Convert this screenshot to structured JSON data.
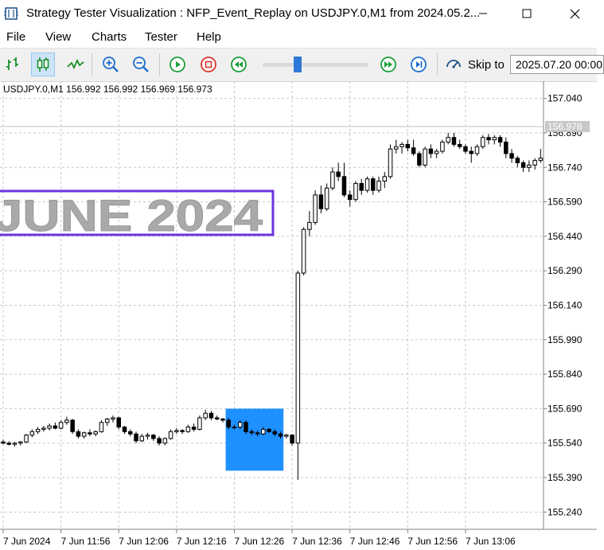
{
  "window": {
    "title": "Strategy Tester Visualization : NFP_Event_Replay on USDJPY.0,M1 from 2024.05.2...",
    "minimize_icon": "minimize-icon",
    "maximize_icon": "maximize-icon",
    "close_icon": "close-icon"
  },
  "menu": {
    "items": [
      "File",
      "View",
      "Charts",
      "Tester",
      "Help"
    ]
  },
  "toolbar": {
    "icons": [
      "bar-chart-icon",
      "candlestick-icon",
      "line-chart-icon",
      "zoom-in-icon",
      "zoom-out-icon",
      "play-icon",
      "stop-icon",
      "rewind-icon",
      "fast-forward-icon",
      "skip-to-end-icon",
      "skip-to-icon"
    ],
    "active": "candlestick-icon",
    "speed_slider_level": 0.35,
    "skip_label": "Skip to",
    "skip_date": "2025.07.20 00:00"
  },
  "chart": {
    "symbol_info": "USDJPY.0,M1  156.992 156.992 156.969 156.973",
    "price_levels": [
      "157.040",
      "156.890",
      "156.740",
      "156.590",
      "156.440",
      "156.290",
      "156.140",
      "155.990",
      "155.840",
      "155.690",
      "155.540",
      "155.390",
      "155.240"
    ],
    "current_price": "156.978",
    "time_labels": [
      "7 Jun 2024",
      "7 Jun 11:56",
      "7 Jun 12:06",
      "7 Jun 12:16",
      "7 Jun 12:26",
      "7 Jun 12:36",
      "7 Jun 12:46",
      "7 Jun 12:56",
      "7 Jun 13:06"
    ],
    "event_label": "JUNE 2024",
    "colors": {
      "grid": "#c8c8c8",
      "candle": "#000000",
      "event_box": "#1e90ff",
      "label_border": "#6a35e0",
      "label_text": "#a9a9a9"
    }
  },
  "chart_data": {
    "type": "candlestick",
    "symbol": "USDJPY.0,M1",
    "ylim": [
      155.165,
      157.115
    ],
    "candles": [
      [
        155.545,
        155.555,
        155.535,
        155.54
      ],
      [
        155.54,
        155.548,
        155.53,
        155.535
      ],
      [
        155.535,
        155.545,
        155.525,
        155.54
      ],
      [
        155.54,
        155.55,
        155.53,
        155.545
      ],
      [
        155.545,
        155.58,
        155.54,
        155.575
      ],
      [
        155.575,
        155.6,
        155.565,
        155.59
      ],
      [
        155.59,
        155.61,
        155.58,
        155.6
      ],
      [
        155.6,
        155.615,
        155.59,
        155.605
      ],
      [
        155.605,
        155.625,
        155.595,
        155.615
      ],
      [
        155.615,
        155.63,
        155.6,
        155.605
      ],
      [
        155.605,
        155.64,
        155.6,
        155.63
      ],
      [
        155.63,
        155.655,
        155.62,
        155.64
      ],
      [
        155.64,
        155.645,
        155.58,
        155.59
      ],
      [
        155.59,
        155.6,
        155.56,
        155.57
      ],
      [
        155.57,
        155.59,
        155.56,
        155.585
      ],
      [
        155.585,
        155.6,
        155.57,
        155.58
      ],
      [
        155.58,
        155.595,
        155.57,
        155.59
      ],
      [
        155.59,
        155.64,
        155.585,
        155.63
      ],
      [
        155.63,
        155.65,
        155.615,
        155.645
      ],
      [
        155.645,
        155.66,
        155.63,
        155.65
      ],
      [
        155.65,
        155.655,
        155.6,
        155.61
      ],
      [
        155.61,
        155.615,
        155.58,
        155.59
      ],
      [
        155.59,
        155.6,
        155.57,
        155.58
      ],
      [
        155.58,
        155.59,
        155.54,
        155.55
      ],
      [
        155.55,
        155.58,
        155.545,
        155.57
      ],
      [
        155.57,
        155.585,
        155.555,
        155.575
      ],
      [
        155.575,
        155.58,
        155.55,
        155.56
      ],
      [
        155.56,
        155.57,
        155.53,
        155.54
      ],
      [
        155.54,
        155.565,
        155.53,
        155.56
      ],
      [
        155.56,
        155.6,
        155.555,
        155.59
      ],
      [
        155.59,
        155.605,
        155.58,
        155.595
      ],
      [
        155.595,
        155.6,
        155.58,
        155.59
      ],
      [
        155.59,
        155.62,
        155.585,
        155.61
      ],
      [
        155.61,
        155.625,
        155.59,
        155.6
      ],
      [
        155.6,
        155.66,
        155.595,
        155.65
      ],
      [
        155.65,
        155.685,
        155.64,
        155.67
      ],
      [
        155.67,
        155.68,
        155.64,
        155.65
      ],
      [
        155.65,
        155.66,
        155.64,
        155.645
      ],
      [
        155.645,
        155.65,
        155.63,
        155.64
      ],
      [
        155.64,
        155.65,
        155.6,
        155.61
      ],
      [
        155.61,
        155.62,
        155.6,
        155.61
      ],
      [
        155.61,
        155.64,
        155.6,
        155.63
      ],
      [
        155.63,
        155.64,
        155.58,
        155.59
      ],
      [
        155.59,
        155.6,
        155.575,
        155.585
      ],
      [
        155.585,
        155.595,
        155.57,
        155.58
      ],
      [
        155.58,
        155.61,
        155.575,
        155.6
      ],
      [
        155.6,
        155.605,
        155.585,
        155.59
      ],
      [
        155.59,
        155.6,
        155.57,
        155.58
      ],
      [
        155.58,
        155.59,
        155.56,
        155.57
      ],
      [
        155.57,
        155.58,
        155.56,
        155.575
      ],
      [
        155.575,
        155.58,
        155.53,
        155.54
      ],
      [
        155.54,
        156.29,
        155.38,
        156.28
      ],
      [
        156.28,
        156.48,
        156.27,
        156.47
      ],
      [
        156.47,
        156.55,
        156.44,
        156.5
      ],
      [
        156.5,
        156.64,
        156.49,
        156.62
      ],
      [
        156.62,
        156.66,
        156.54,
        156.56
      ],
      [
        156.56,
        156.67,
        156.55,
        156.65
      ],
      [
        156.65,
        156.74,
        156.64,
        156.72
      ],
      [
        156.72,
        156.76,
        156.68,
        156.7
      ],
      [
        156.7,
        156.76,
        156.61,
        156.62
      ],
      [
        156.62,
        156.64,
        156.57,
        156.6
      ],
      [
        156.6,
        156.68,
        156.59,
        156.67
      ],
      [
        156.67,
        156.69,
        156.62,
        156.64
      ],
      [
        156.64,
        156.7,
        156.63,
        156.69
      ],
      [
        156.69,
        156.7,
        156.62,
        156.64
      ],
      [
        156.64,
        156.7,
        156.63,
        156.68
      ],
      [
        156.68,
        156.72,
        156.65,
        156.7
      ],
      [
        156.7,
        156.84,
        156.69,
        156.82
      ],
      [
        156.82,
        156.86,
        156.8,
        156.83
      ],
      [
        156.83,
        156.85,
        156.8,
        156.84
      ],
      [
        156.84,
        156.86,
        156.81,
        156.825
      ],
      [
        156.825,
        156.86,
        156.79,
        156.8
      ],
      [
        156.8,
        156.81,
        156.74,
        156.75
      ],
      [
        156.75,
        156.83,
        156.74,
        156.82
      ],
      [
        156.82,
        156.84,
        156.78,
        156.8
      ],
      [
        156.8,
        156.82,
        156.78,
        156.81
      ],
      [
        156.81,
        156.86,
        156.8,
        156.85
      ],
      [
        156.85,
        156.89,
        156.84,
        156.87
      ],
      [
        156.87,
        156.89,
        156.83,
        156.84
      ],
      [
        156.84,
        156.86,
        156.82,
        156.83
      ],
      [
        156.83,
        156.84,
        156.8,
        156.81
      ],
      [
        156.81,
        156.83,
        156.76,
        156.8
      ],
      [
        156.8,
        156.84,
        156.79,
        156.83
      ],
      [
        156.83,
        156.88,
        156.82,
        156.87
      ],
      [
        156.87,
        156.885,
        156.84,
        156.86
      ],
      [
        156.86,
        156.88,
        156.84,
        156.87
      ],
      [
        156.87,
        156.88,
        156.83,
        156.85
      ],
      [
        156.85,
        156.87,
        156.78,
        156.8
      ],
      [
        156.8,
        156.82,
        156.76,
        156.78
      ],
      [
        156.78,
        156.79,
        156.74,
        156.76
      ],
      [
        156.76,
        156.77,
        156.72,
        156.74
      ],
      [
        156.74,
        156.77,
        156.72,
        156.75
      ],
      [
        156.75,
        156.78,
        156.73,
        156.77
      ],
      [
        156.77,
        156.82,
        156.76,
        156.78
      ]
    ],
    "event_box": {
      "start_index": 39,
      "end_index": 48,
      "y_top": 155.69,
      "y_bottom": 155.42
    },
    "event_label": {
      "text": "JUNE 2024",
      "price_top": 156.715,
      "price_bottom": 156.455
    },
    "grid": true
  }
}
